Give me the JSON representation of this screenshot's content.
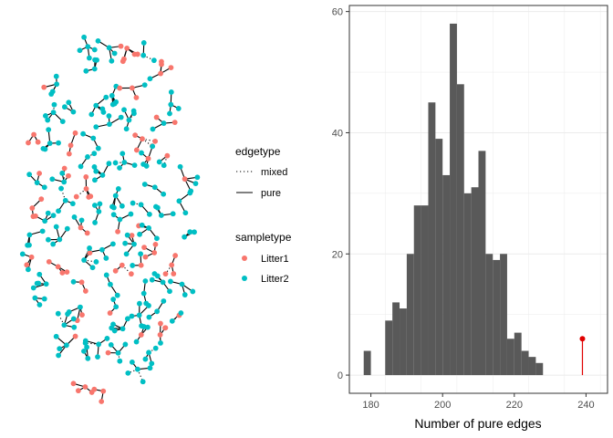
{
  "colors": {
    "litter1": "#F8766D",
    "litter2": "#00BFC4",
    "bar_fill": "#595959",
    "observed": "#E00000",
    "grid": "#EBEBEB",
    "panel_border": "#333333",
    "edge": "#000000"
  },
  "legend": {
    "edgetype": {
      "title": "edgetype",
      "items": [
        {
          "label": "mixed",
          "style": "dotted"
        },
        {
          "label": "pure",
          "style": "solid"
        }
      ]
    },
    "sampletype": {
      "title": "sampletype",
      "items": [
        {
          "label": "Litter1",
          "color": "#F8766D"
        },
        {
          "label": "Litter2",
          "color": "#00BFC4"
        }
      ]
    }
  },
  "chart_data": [
    {
      "type": "network",
      "description_of_marks": "Network graph of many small components; node color by sampletype, edge style by edgetype",
      "node_color_legend": [
        "Litter1",
        "Litter2"
      ],
      "edge_style_legend": [
        "mixed",
        "pure"
      ]
    },
    {
      "type": "bar",
      "subtype": "histogram",
      "xlabel": "Number of pure edges",
      "ylabel": "",
      "xlim": [
        174,
        246
      ],
      "ylim": [
        -3,
        61
      ],
      "xticks": [
        180,
        200,
        220,
        240
      ],
      "yticks": [
        0,
        20,
        40,
        60
      ],
      "binwidth": 2,
      "bins": [
        {
          "x0": 178,
          "x1": 180,
          "count": 4
        },
        {
          "x0": 180,
          "x1": 182,
          "count": 0
        },
        {
          "x0": 182,
          "x1": 184,
          "count": 0
        },
        {
          "x0": 184,
          "x1": 186,
          "count": 9
        },
        {
          "x0": 186,
          "x1": 188,
          "count": 12
        },
        {
          "x0": 188,
          "x1": 190,
          "count": 11
        },
        {
          "x0": 190,
          "x1": 192,
          "count": 20
        },
        {
          "x0": 192,
          "x1": 194,
          "count": 28
        },
        {
          "x0": 194,
          "x1": 196,
          "count": 28
        },
        {
          "x0": 196,
          "x1": 198,
          "count": 45
        },
        {
          "x0": 198,
          "x1": 200,
          "count": 39
        },
        {
          "x0": 200,
          "x1": 202,
          "count": 33
        },
        {
          "x0": 202,
          "x1": 204,
          "count": 58
        },
        {
          "x0": 204,
          "x1": 206,
          "count": 48
        },
        {
          "x0": 206,
          "x1": 208,
          "count": 30
        },
        {
          "x0": 208,
          "x1": 210,
          "count": 31
        },
        {
          "x0": 210,
          "x1": 212,
          "count": 37
        },
        {
          "x0": 212,
          "x1": 214,
          "count": 20
        },
        {
          "x0": 214,
          "x1": 216,
          "count": 19
        },
        {
          "x0": 216,
          "x1": 218,
          "count": 20
        },
        {
          "x0": 218,
          "x1": 220,
          "count": 6
        },
        {
          "x0": 220,
          "x1": 222,
          "count": 7
        },
        {
          "x0": 222,
          "x1": 224,
          "count": 4
        },
        {
          "x0": 224,
          "x1": 226,
          "count": 3
        },
        {
          "x0": 226,
          "x1": 228,
          "count": 2
        }
      ],
      "observed": {
        "x": 239,
        "y": 6
      }
    }
  ]
}
